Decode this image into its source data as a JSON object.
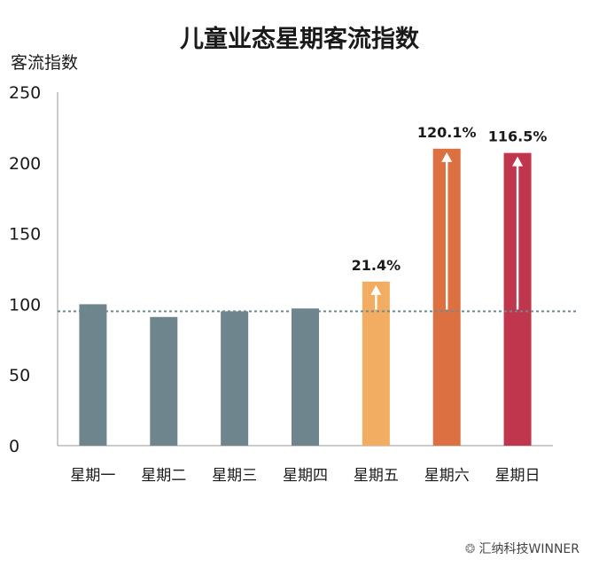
{
  "chart_data": {
    "type": "bar",
    "title": "儿童业态星期客流指数",
    "ylabel": "客流指数",
    "xlabel": "",
    "ylim": [
      0,
      250
    ],
    "yticks": [
      0,
      50,
      100,
      150,
      200,
      250
    ],
    "categories": [
      "星期一",
      "星期二",
      "星期三",
      "星期四",
      "星期五",
      "星期六",
      "星期日"
    ],
    "values": [
      100,
      91,
      95,
      97,
      116,
      210,
      207
    ],
    "colors": [
      "#6e858e",
      "#6e858e",
      "#6e858e",
      "#6e858e",
      "#f3ad63",
      "#dd7040",
      "#c0364c"
    ],
    "baseline": 95,
    "annotations": [
      {
        "category": "星期五",
        "label": "21.4%"
      },
      {
        "category": "星期六",
        "label": "120.1%"
      },
      {
        "category": "星期日",
        "label": "116.5%"
      }
    ],
    "grid": false
  },
  "watermark": {
    "text": "汇纳科技WINNER",
    "icon": "wechat-icon"
  }
}
